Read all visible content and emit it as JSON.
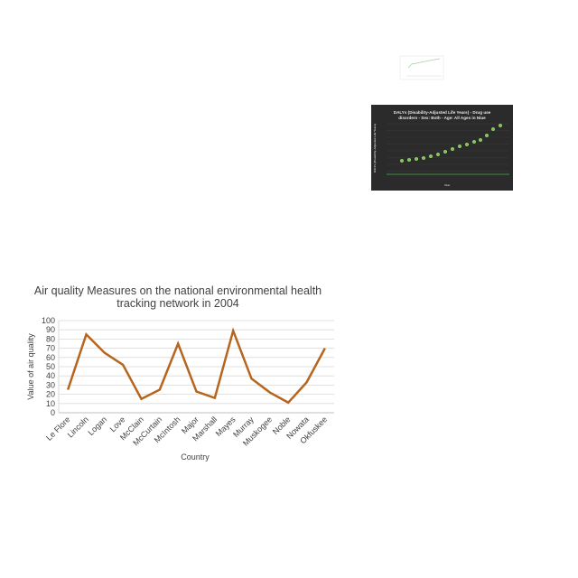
{
  "chart_data": [
    {
      "type": "line",
      "title": "Air quality Measures on the national environmental health tracking network in 2004",
      "title_lines": [
        "Air quality Measures on the national environmental health",
        "tracking network in 2004"
      ],
      "xlabel": "Country",
      "ylabel": "Value of air quality",
      "ylim": [
        0,
        100
      ],
      "yticks": [
        0,
        10,
        20,
        30,
        40,
        50,
        60,
        70,
        80,
        90,
        100
      ],
      "grid": true,
      "categories": [
        "Le Flore",
        "Lincoln",
        "Logan",
        "Love",
        "McClain",
        "McCurtain",
        "McIntosh",
        "Major",
        "Marshall",
        "Mayes",
        "Murray",
        "Muskogee",
        "Noble",
        "Nowata",
        "Okfuskee"
      ],
      "series": [
        {
          "values": [
            25,
            85,
            65,
            52,
            15,
            25,
            75,
            23,
            16,
            89,
            37,
            22,
            11,
            33,
            70
          ]
        }
      ],
      "color": "#b5651d"
    },
    {
      "type": "scatter",
      "title": "DALYs (Disability-Adjusted Life Years) - Drug use disorders - Sex: Both - Age: All Ages in Niue",
      "title_lines": [
        "DALYs (Disability-Adjusted Life Years) - Drug use",
        "disorders - Sex: Both - Age: All Ages in Niue"
      ],
      "xlabel": "Year",
      "ylabel": "DALYs (Disability-Adjusted Life Years)",
      "background": "#2b2b2b",
      "color": "#7ec850"
    },
    {
      "type": "line",
      "thumbnail": true,
      "background": "#ffffff",
      "color": "#9fd3a6"
    }
  ]
}
